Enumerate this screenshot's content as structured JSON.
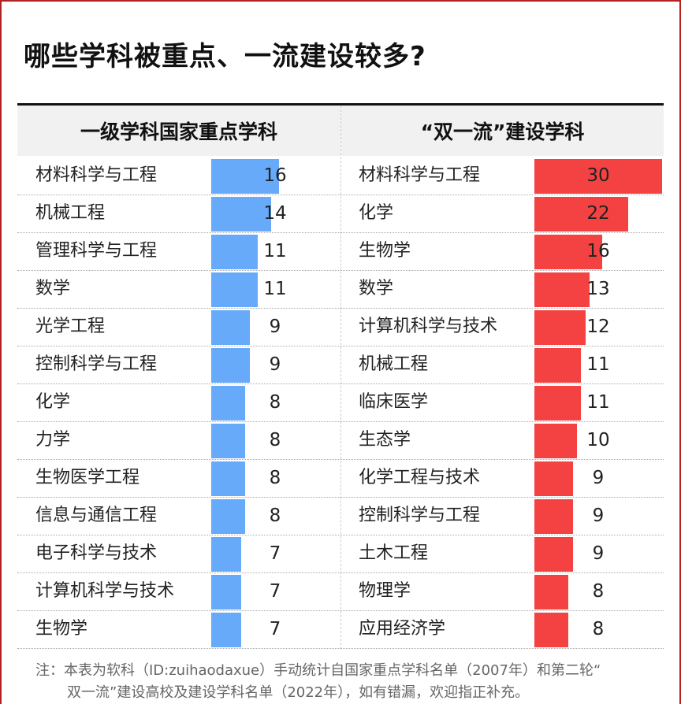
{
  "title": "哪些学科被重点、一流建设较多?",
  "chart_data": [
    {
      "type": "bar",
      "orientation": "horizontal",
      "title": "一级学科国家重点学科",
      "color": "#66aaf9",
      "categories": [
        "材料科学与工程",
        "机械工程",
        "管理科学与工程",
        "数学",
        "光学工程",
        "控制科学与工程",
        "化学",
        "力学",
        "生物医学工程",
        "信息与通信工程",
        "电子科学与技术",
        "计算机科学与技术",
        "生物学"
      ],
      "values": [
        16,
        14,
        11,
        11,
        9,
        9,
        8,
        8,
        8,
        8,
        7,
        7,
        7
      ]
    },
    {
      "type": "bar",
      "orientation": "horizontal",
      "title": "“双一流”建设学科",
      "color": "#f44242",
      "categories": [
        "材料科学与工程",
        "化学",
        "生物学",
        "数学",
        "计算机科学与技术",
        "机械工程",
        "临床医学",
        "生态学",
        "化学工程与技术",
        "控制科学与工程",
        "土木工程",
        "物理学",
        "应用经济学"
      ],
      "values": [
        30,
        22,
        16,
        13,
        12,
        11,
        11,
        10,
        9,
        9,
        9,
        8,
        8
      ]
    }
  ],
  "note": {
    "line1": "注：本表为软科（ID:zuihaodaxue）手动统计自国家重点学科名单（2007年）和第二轮“",
    "line2": "双一流”建设高校及建设学科名单（2022年），如有错漏，欢迎指正补充。"
  }
}
